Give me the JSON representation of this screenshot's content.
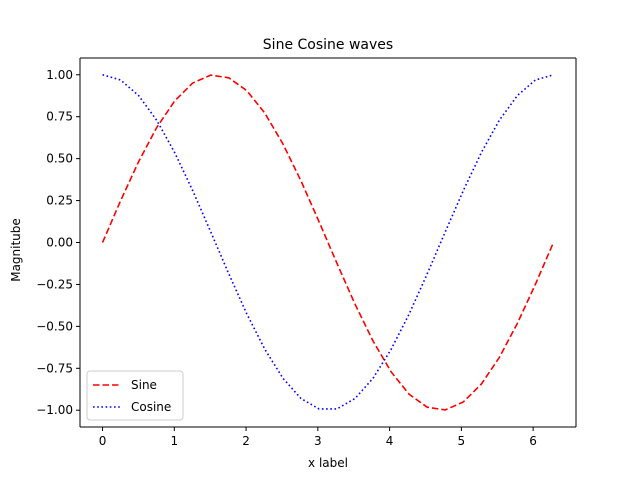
{
  "chart_data": {
    "type": "line",
    "title": "Sine Cosine waves",
    "xlabel": "x label",
    "ylabel": "Magnitube",
    "xlim": [
      -0.3142,
      6.5974
    ],
    "ylim": [
      -1.1,
      1.1
    ],
    "xticks": [
      0,
      1,
      2,
      3,
      4,
      5,
      6
    ],
    "xtick_labels": [
      "0",
      "1",
      "2",
      "3",
      "4",
      "5",
      "6"
    ],
    "yticks": [
      -1.0,
      -0.75,
      -0.5,
      -0.25,
      0.0,
      0.25,
      0.5,
      0.75,
      1.0
    ],
    "ytick_labels": [
      "−1.00",
      "−0.75",
      "−0.50",
      "−0.25",
      "0.00",
      "0.25",
      "0.50",
      "0.75",
      "1.00"
    ],
    "grid": false,
    "legend_position": "lower-left",
    "series": [
      {
        "name": "Sine",
        "color": "#ff0000",
        "dash": "dashed",
        "x": [
          0,
          0.2513,
          0.5027,
          0.754,
          1.0053,
          1.2566,
          1.508,
          1.7593,
          2.0106,
          2.2619,
          2.5133,
          2.7646,
          3.0159,
          3.2673,
          3.5186,
          3.7699,
          4.0212,
          4.2726,
          4.5239,
          4.7752,
          5.0265,
          5.2779,
          5.5292,
          5.7805,
          6.0319,
          6.2832
        ],
        "y": [
          0,
          0.249,
          0.482,
          0.685,
          0.844,
          0.951,
          0.998,
          0.982,
          0.905,
          0.771,
          0.588,
          0.368,
          0.125,
          -0.125,
          -0.368,
          -0.588,
          -0.771,
          -0.905,
          -0.982,
          -0.998,
          -0.951,
          -0.844,
          -0.685,
          -0.482,
          -0.249,
          0
        ]
      },
      {
        "name": "Cosine",
        "color": "#0000ff",
        "dash": "dotted",
        "x": [
          0,
          0.2513,
          0.5027,
          0.754,
          1.0053,
          1.2566,
          1.508,
          1.7593,
          2.0106,
          2.2619,
          2.5133,
          2.7646,
          3.0159,
          3.2673,
          3.5186,
          3.7699,
          4.0212,
          4.2726,
          4.5239,
          4.7752,
          5.0265,
          5.2779,
          5.5292,
          5.7805,
          6.0319,
          6.2832
        ],
        "y": [
          1,
          0.969,
          0.876,
          0.729,
          0.536,
          0.309,
          0.063,
          -0.187,
          -0.426,
          -0.637,
          -0.809,
          -0.93,
          -0.992,
          -0.992,
          -0.93,
          -0.809,
          -0.637,
          -0.426,
          -0.187,
          0.063,
          0.309,
          0.536,
          0.729,
          0.876,
          0.969,
          1
        ]
      }
    ]
  }
}
